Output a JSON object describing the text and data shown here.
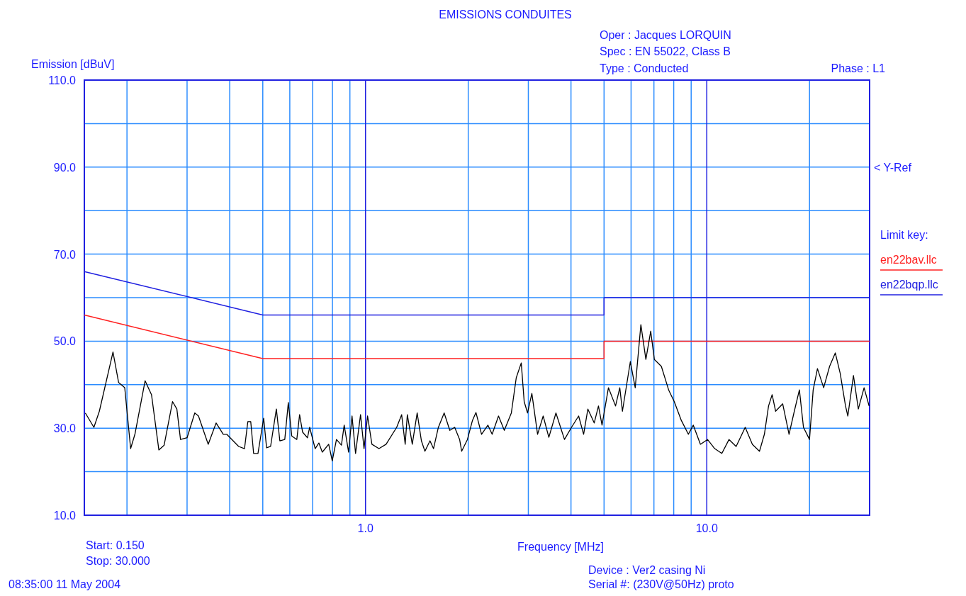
{
  "chart_data": {
    "type": "line",
    "title": "EMISSIONS CONDUITES",
    "xlabel": "Frequency [MHz]",
    "ylabel": "Emission [dBuV]",
    "log": "x",
    "grid": true,
    "legend": "right",
    "legend_title": "Limit key:",
    "line_style": "solid",
    "marker": "none",
    "xlim": [
      0.15,
      30
    ],
    "ylim": [
      10,
      110
    ],
    "xticks": [
      {
        "value": 0.2,
        "label": null
      },
      {
        "value": 0.3,
        "label": null
      },
      {
        "value": 0.4,
        "label": null
      },
      {
        "value": 0.5,
        "label": null
      },
      {
        "value": 0.6,
        "label": null
      },
      {
        "value": 0.7,
        "label": null
      },
      {
        "value": 0.8,
        "label": null
      },
      {
        "value": 0.9,
        "label": null
      },
      {
        "value": 1,
        "label": "1.0"
      },
      {
        "value": 2,
        "label": null
      },
      {
        "value": 3,
        "label": null
      },
      {
        "value": 4,
        "label": null
      },
      {
        "value": 5,
        "label": null
      },
      {
        "value": 6,
        "label": null
      },
      {
        "value": 7,
        "label": null
      },
      {
        "value": 8,
        "label": null
      },
      {
        "value": 9,
        "label": null
      },
      {
        "value": 10,
        "label": "10.0"
      },
      {
        "value": 20,
        "label": null
      }
    ],
    "yticks": [
      {
        "value": 10,
        "label": "10.0"
      },
      {
        "value": 20,
        "label": null
      },
      {
        "value": 30,
        "label": "30.0"
      },
      {
        "value": 40,
        "label": null
      },
      {
        "value": 50,
        "label": "50.0"
      },
      {
        "value": 60,
        "label": null
      },
      {
        "value": 70,
        "label": "70.0"
      },
      {
        "value": 80,
        "label": null
      },
      {
        "value": 90,
        "label": "90.0"
      },
      {
        "value": 100,
        "label": null
      },
      {
        "value": 110,
        "label": "110.0"
      }
    ],
    "series": [
      {
        "name": "en22bav.llc",
        "color": "#ff2020",
        "x": [
          0.15,
          0.5,
          5,
          5,
          30
        ],
        "values": [
          56,
          46,
          46,
          50,
          50
        ]
      },
      {
        "name": "en22bqp.llc",
        "color": "#2020e0",
        "x": [
          0.15,
          0.5,
          5,
          5,
          30
        ],
        "values": [
          66,
          56,
          56,
          60,
          60
        ]
      },
      {
        "color": "#000000",
        "x": [
          0.151,
          0.16,
          0.166,
          0.182,
          0.189,
          0.197,
          0.205,
          0.211,
          0.226,
          0.236,
          0.248,
          0.257,
          0.272,
          0.28,
          0.287,
          0.3,
          0.316,
          0.324,
          0.346,
          0.365,
          0.383,
          0.392,
          0.425,
          0.442,
          0.452,
          0.461,
          0.47,
          0.484,
          0.503,
          0.513,
          0.527,
          0.548,
          0.561,
          0.58,
          0.594,
          0.608,
          0.629,
          0.641,
          0.654,
          0.676,
          0.686,
          0.712,
          0.73,
          0.747,
          0.78,
          0.799,
          0.822,
          0.85,
          0.866,
          0.892,
          0.913,
          0.935,
          0.967,
          0.99,
          1.014,
          1.044,
          1.095,
          1.149,
          1.234,
          1.276,
          1.307,
          1.326,
          1.371,
          1.417,
          1.458,
          1.493,
          1.545,
          1.582,
          1.635,
          1.7,
          1.766,
          1.825,
          1.887,
          1.913,
          1.989,
          2.058,
          2.107,
          2.188,
          2.284,
          2.35,
          2.453,
          2.551,
          2.675,
          2.765,
          2.86,
          2.917,
          2.984,
          3.072,
          3.193,
          3.316,
          3.445,
          3.614,
          3.828,
          4.014,
          4.212,
          4.356,
          4.483,
          4.679,
          4.815,
          4.932,
          5.15,
          5.403,
          5.56,
          5.66,
          5.97,
          6.17,
          6.41,
          6.63,
          6.85,
          7.02,
          7.36,
          7.73,
          8.03,
          8.42,
          8.83,
          9.13,
          9.58,
          10.05,
          10.55,
          11.07,
          11.62,
          12.19,
          12.96,
          13.6,
          14.27,
          14.75,
          15.17,
          15.54,
          15.91,
          16.69,
          17.42,
          18.05,
          18.68,
          19.2,
          20,
          20.5,
          21.1,
          22,
          22.9,
          23.8,
          24.6,
          25.5,
          25.9,
          26.9,
          27.8,
          28.9,
          29.9
        ],
        "values": [
          33.5,
          30.2,
          33.9,
          47.5,
          40.5,
          39.3,
          25.3,
          28.6,
          40.9,
          37.7,
          25,
          26.1,
          36.1,
          34.4,
          27.4,
          27.8,
          33.5,
          32.8,
          26.3,
          31.2,
          28.6,
          28.6,
          25.8,
          25.3,
          31.5,
          31.5,
          24.2,
          24.2,
          32.3,
          25.5,
          25.8,
          34.4,
          27.1,
          27.4,
          35.9,
          28.2,
          27.4,
          33.1,
          29.1,
          27.8,
          30.2,
          25.3,
          26.6,
          24.5,
          26.3,
          22.5,
          27.4,
          26.1,
          30.7,
          24.5,
          32.8,
          24.2,
          33.1,
          25.3,
          32.8,
          26.3,
          25.3,
          26.3,
          30.2,
          33.1,
          26.3,
          33.1,
          26.3,
          33.5,
          27.1,
          24.7,
          27.1,
          25.3,
          30.2,
          33.5,
          29.5,
          30.2,
          27.4,
          24.7,
          27.4,
          31.8,
          33.6,
          28.6,
          30.7,
          28.6,
          32.8,
          29.5,
          33.5,
          41.6,
          45,
          36.1,
          33.5,
          38,
          28.6,
          32.8,
          27.9,
          33.5,
          27.4,
          30.2,
          32.8,
          28.6,
          34.4,
          31.2,
          35.1,
          30.7,
          39.3,
          35.1,
          39.3,
          33.9,
          45.3,
          39.3,
          53.8,
          45.8,
          52.3,
          45.8,
          44.2,
          38.8,
          36.1,
          31.8,
          28.6,
          30.7,
          26.3,
          27.4,
          25.3,
          24.2,
          27.4,
          25.8,
          30.2,
          26.3,
          24.7,
          28.6,
          35.1,
          37.7,
          33.9,
          35.6,
          28.6,
          33.9,
          38.8,
          30.2,
          27.4,
          38.8,
          43.7,
          39.3,
          44.2,
          47.3,
          42.6,
          35.1,
          32.8,
          42.1,
          34.4,
          39.3,
          35.1
        ]
      }
    ],
    "annotations": [
      "Oper : Jacques LORQUIN",
      "Spec : EN 55022, Class B",
      "Type : Conducted",
      "Phase : L1",
      "< Y-Ref",
      "Start: 0.150",
      "Stop: 30.000",
      "08:35:00 11 May 2004",
      "Device : Ver2  casing Ni",
      "Serial #: (230V@50Hz) proto"
    ]
  }
}
